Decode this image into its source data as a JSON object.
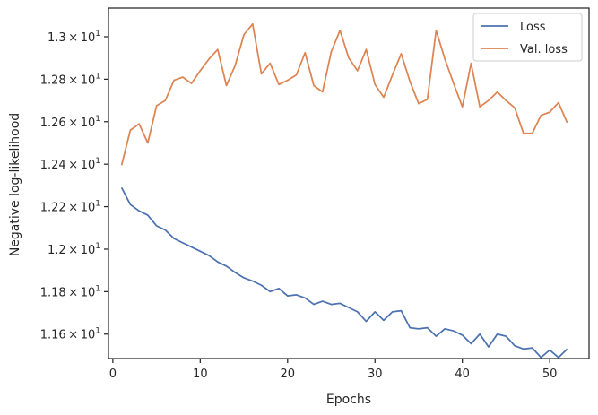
{
  "chart_data": {
    "type": "line",
    "xlabel": "Epochs",
    "ylabel": "Negative log-likelihood",
    "xlim": [
      -0.5,
      54.5
    ],
    "ylim": [
      11.485,
      13.135
    ],
    "x_ticks": [
      {
        "value": 0,
        "label": "0"
      },
      {
        "value": 10,
        "label": "10"
      },
      {
        "value": 20,
        "label": "20"
      },
      {
        "value": 30,
        "label": "30"
      },
      {
        "value": 40,
        "label": "40"
      },
      {
        "value": 50,
        "label": "50"
      }
    ],
    "y_ticks": [
      {
        "value": 11.6,
        "mant": "1.16",
        "exp": "1"
      },
      {
        "value": 11.8,
        "mant": "1.18",
        "exp": "1"
      },
      {
        "value": 12.0,
        "mant": "1.2",
        "exp": "1"
      },
      {
        "value": 12.2,
        "mant": "1.22",
        "exp": "1"
      },
      {
        "value": 12.4,
        "mant": "1.24",
        "exp": "1"
      },
      {
        "value": 12.6,
        "mant": "1.26",
        "exp": "1"
      },
      {
        "value": 12.8,
        "mant": "1.28",
        "exp": "1"
      },
      {
        "value": 13.0,
        "mant": "1.3",
        "exp": "1"
      }
    ],
    "legend_position": "top-right",
    "grid": false,
    "x": [
      1,
      2,
      3,
      4,
      5,
      6,
      7,
      8,
      9,
      10,
      11,
      12,
      13,
      14,
      15,
      16,
      17,
      18,
      19,
      20,
      21,
      22,
      23,
      24,
      25,
      26,
      27,
      28,
      29,
      30,
      31,
      32,
      33,
      34,
      35,
      36,
      37,
      38,
      39,
      40,
      41,
      42,
      43,
      44,
      45,
      46,
      47,
      48,
      49,
      50,
      51,
      52
    ],
    "series": [
      {
        "name": "Loss",
        "color": "#4c72b0",
        "values": [
          12.29,
          12.21,
          12.18,
          12.16,
          12.11,
          12.09,
          12.05,
          12.03,
          12.01,
          11.99,
          11.97,
          11.94,
          11.92,
          11.89,
          11.865,
          11.85,
          11.83,
          11.8,
          11.815,
          11.78,
          11.785,
          11.77,
          11.74,
          11.755,
          11.74,
          11.745,
          11.725,
          11.705,
          11.66,
          11.705,
          11.665,
          11.705,
          11.71,
          11.63,
          11.625,
          11.63,
          11.59,
          11.625,
          11.615,
          11.595,
          11.555,
          11.6,
          11.54,
          11.6,
          11.59,
          11.545,
          11.53,
          11.535,
          11.49,
          11.525,
          11.49,
          11.53
        ]
      },
      {
        "name": "Val. loss",
        "color": "#dd8452",
        "values": [
          12.395,
          12.56,
          12.59,
          12.5,
          12.675,
          12.7,
          12.795,
          12.81,
          12.78,
          12.84,
          12.895,
          12.94,
          12.77,
          12.865,
          13.01,
          13.06,
          12.825,
          12.875,
          12.775,
          12.795,
          12.82,
          12.925,
          12.77,
          12.74,
          12.93,
          13.03,
          12.9,
          12.84,
          12.94,
          12.775,
          12.715,
          12.82,
          12.92,
          12.79,
          12.685,
          12.705,
          13.03,
          12.895,
          12.78,
          12.67,
          12.875,
          12.67,
          12.7,
          12.74,
          12.7,
          12.665,
          12.545,
          12.545,
          12.63,
          12.645,
          12.69,
          12.595
        ]
      }
    ]
  }
}
